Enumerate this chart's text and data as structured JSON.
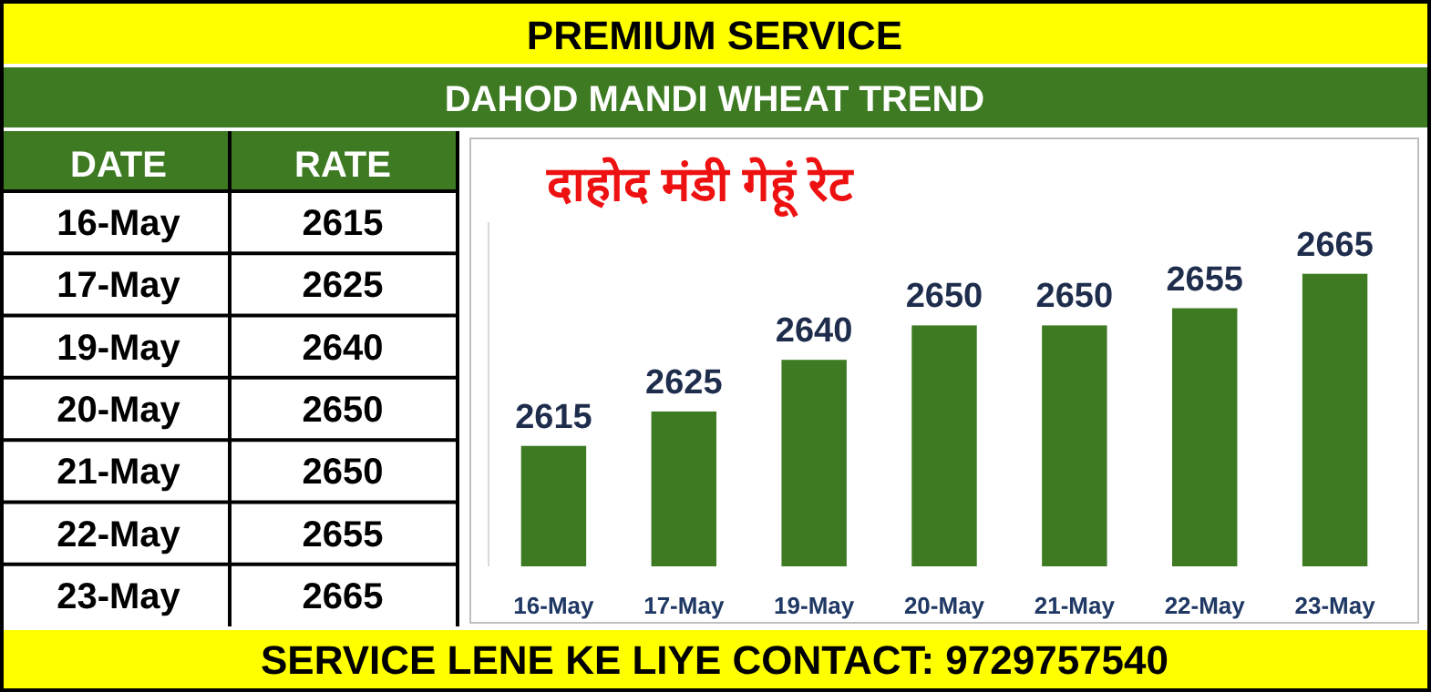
{
  "chart_data": {
    "type": "bar",
    "title": "DAHOD MANDI WHEAT TREND",
    "subtitle": "दाहोद मंडी गेहूं रेट",
    "annotations": [
      "PREMIUM SERVICE",
      "DATE",
      "RATE",
      "SERVICE LENE KE LIYE CONTACT: 9729757540"
    ],
    "categories": [
      "16-May",
      "17-May",
      "19-May",
      "20-May",
      "21-May",
      "22-May",
      "23-May"
    ],
    "values": [
      2615,
      2625,
      2640,
      2650,
      2650,
      2655,
      2665
    ],
    "value_labels": [
      "2615",
      "2625",
      "2640",
      "2650",
      "2650",
      "2655",
      "2665"
    ],
    "color": "#3d7a22",
    "ylim": [
      2580,
      2680
    ],
    "tick_labels": "x"
  }
}
